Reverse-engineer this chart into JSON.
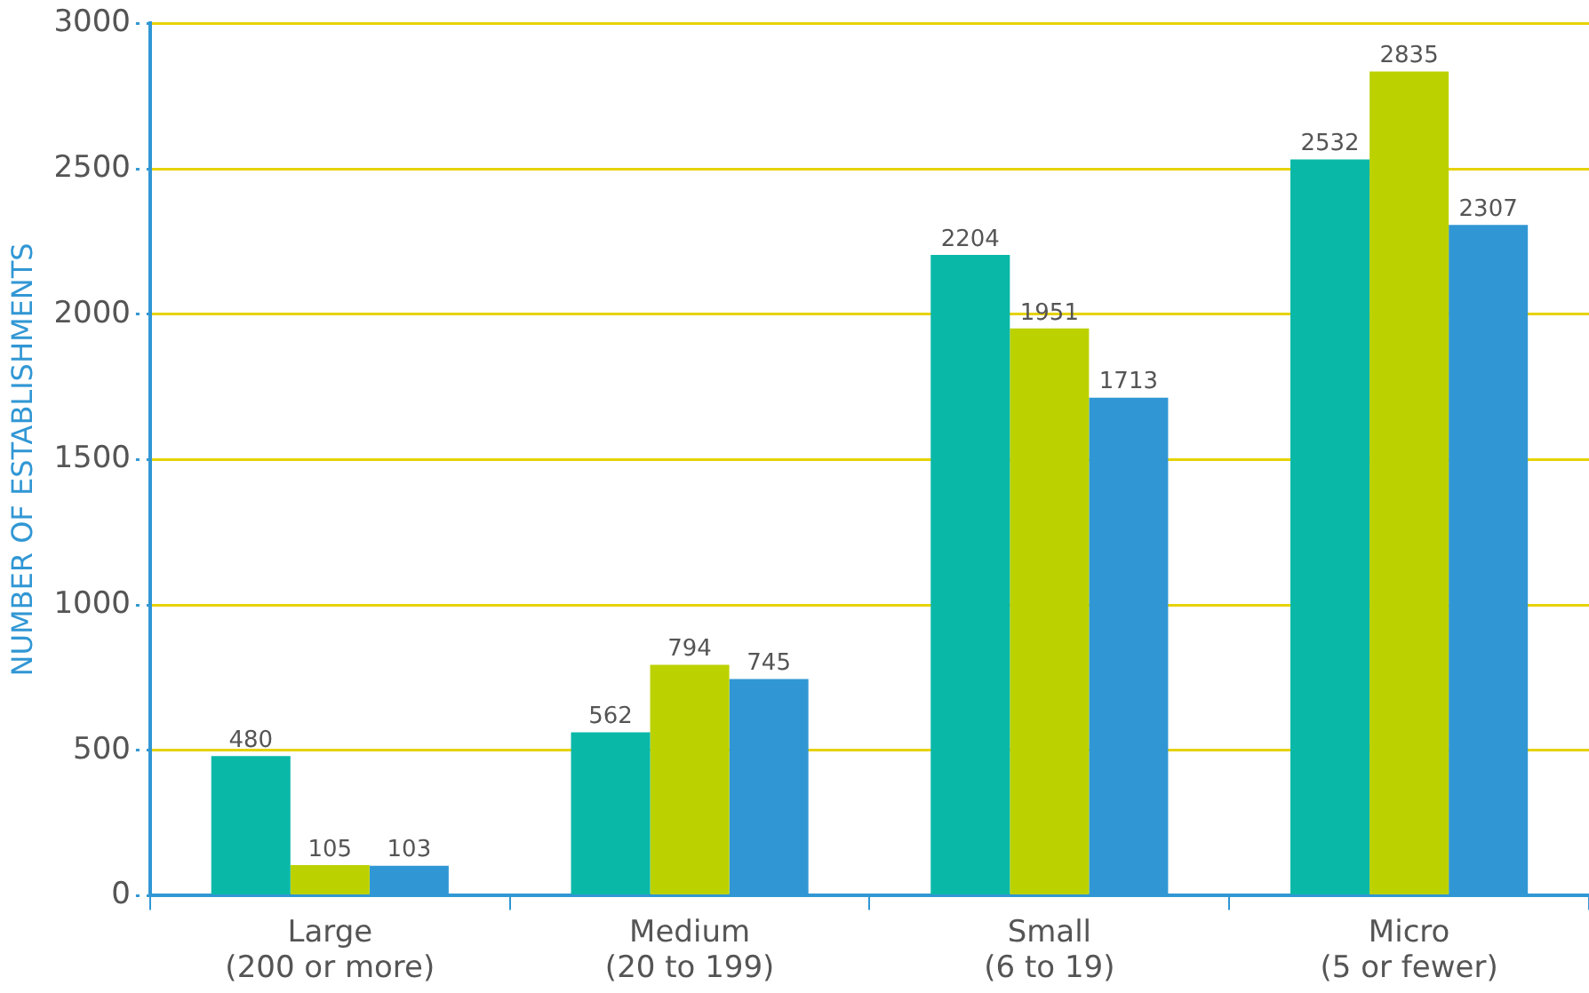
{
  "chart_data": {
    "type": "bar",
    "ylabel": "NUMBER OF ESTABLISHMENTS",
    "categories": [
      "Large\n(200 or more)",
      "Medium\n(20 to 199)",
      "Small\n(6 to 19)",
      "Micro\n(5 or fewer)"
    ],
    "series": [
      {
        "color": "#0ab8a8",
        "values": [
          480,
          562,
          2204,
          2532
        ]
      },
      {
        "color": "#bcd200",
        "values": [
          105,
          794,
          1951,
          2835
        ]
      },
      {
        "color": "#3197d4",
        "values": [
          103,
          745,
          1713,
          2307
        ]
      }
    ],
    "ylim": [
      0,
      3000
    ],
    "yticks": [
      0,
      500,
      1000,
      1500,
      2000,
      2500,
      3000
    ],
    "grid": "y",
    "data_labels": true,
    "legend": false
  }
}
